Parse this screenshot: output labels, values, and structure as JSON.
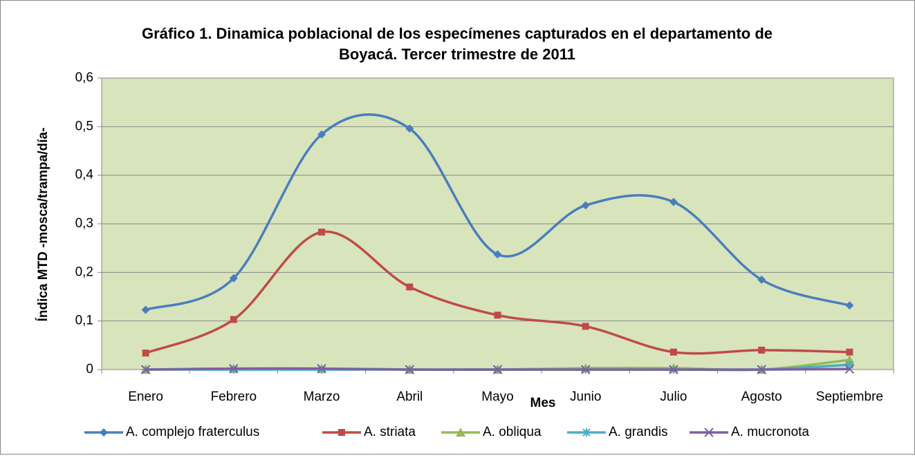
{
  "chart_data": {
    "type": "line",
    "title": [
      "Gráfico 1. Dinamica poblacional de los especímenes capturados en el departamento de",
      "Boyacá. Tercer trimestre de 2011"
    ],
    "x_label": "Mes",
    "y_label": "Índica MTD -mosca/trampa/día-",
    "categories": [
      "Enero",
      "Febrero",
      "Marzo",
      "Abril",
      "Mayo",
      "Junio",
      "Julio",
      "Agosto",
      "Septiembre"
    ],
    "series": [
      {
        "name": "A. complejo fraterculus",
        "color": "#4a7ebb",
        "marker": "diamond",
        "values": [
          0.123,
          0.188,
          0.484,
          0.496,
          0.237,
          0.338,
          0.345,
          0.185,
          0.132
        ]
      },
      {
        "name": "A. striata",
        "color": "#be4b48",
        "marker": "square",
        "values": [
          0.034,
          0.103,
          0.283,
          0.17,
          0.112,
          0.089,
          0.036,
          0.04,
          0.036
        ]
      },
      {
        "name": "A. obliqua",
        "color": "#98b954",
        "marker": "triangle",
        "values": [
          0,
          0.002,
          0.002,
          0,
          0,
          0.003,
          0.003,
          0,
          0.02
        ]
      },
      {
        "name": "A. grandis",
        "color": "#4bacc6",
        "marker": "star",
        "values": [
          0,
          0,
          0,
          0,
          0,
          0,
          0,
          0,
          0.01
        ]
      },
      {
        "name": "A. mucronota",
        "color": "#7d60a0",
        "marker": "x",
        "values": [
          0,
          0.002,
          0.002,
          0,
          0,
          0,
          0,
          0,
          0.001
        ]
      }
    ],
    "ylim": [
      0,
      0.6
    ],
    "yticks": [
      0,
      {
        "value": 0.1,
        "label": "0,1"
      },
      {
        "value": 0.2,
        "label": "0,2"
      },
      {
        "value": 0.3,
        "label": "0,3"
      },
      {
        "value": 0.4,
        "label": "0,4"
      },
      {
        "value": 0.5,
        "label": "0,5"
      },
      {
        "value": 0.6,
        "label": "0,6"
      }
    ],
    "grid": true,
    "smooth": true,
    "plot_background": "#d8e4bc",
    "legend": "bottom"
  }
}
